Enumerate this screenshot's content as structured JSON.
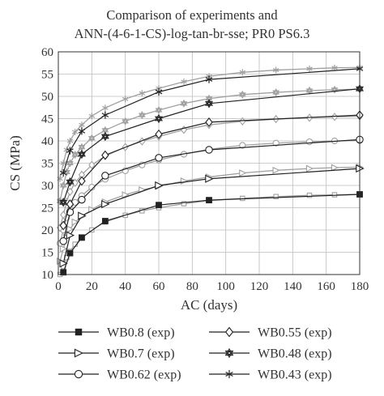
{
  "chart_data": {
    "type": "line",
    "title": [
      "Comparison of experiments and",
      "ANN-(4-6-1-CS)-log-tan-br-sse; PR0 PS6.3"
    ],
    "xlabel": "AC (days)",
    "ylabel": "CS (MPa)",
    "xlim": [
      0,
      180
    ],
    "ylim": [
      10,
      60
    ],
    "xticks": [
      0,
      20,
      40,
      60,
      80,
      100,
      120,
      140,
      160,
      180
    ],
    "yticks": [
      10,
      15,
      20,
      25,
      30,
      35,
      40,
      45,
      50,
      55,
      60
    ],
    "grid": true,
    "legend_position": "bottom",
    "experiment_days": [
      3,
      7,
      14,
      28,
      60,
      90,
      180
    ],
    "series": [
      {
        "name": "WB0.8 (exp)",
        "marker": "square-filled",
        "exp": [
          10.5,
          14.8,
          18.3,
          22.0,
          25.6,
          26.7,
          28.0
        ],
        "ann_color": "#9e9e9e",
        "ann_marker": "square-open",
        "ann": [
          [
            1,
            10.0
          ],
          [
            3,
            11.8
          ],
          [
            5,
            13.8
          ],
          [
            7,
            15.2
          ],
          [
            10,
            16.8
          ],
          [
            14,
            18.2
          ],
          [
            20,
            20.0
          ],
          [
            28,
            21.8
          ],
          [
            40,
            23.3
          ],
          [
            50,
            24.3
          ],
          [
            60,
            25.0
          ],
          [
            75,
            25.9
          ],
          [
            90,
            26.6
          ],
          [
            110,
            27.1
          ],
          [
            130,
            27.5
          ],
          [
            150,
            27.8
          ],
          [
            165,
            27.9
          ],
          [
            180,
            28.0
          ]
        ]
      },
      {
        "name": "WB0.7 (exp)",
        "marker": "triangle-right",
        "exp": [
          12.5,
          18.8,
          23.2,
          25.8,
          30.0,
          31.5,
          33.8
        ],
        "ann_color": "#9e9e9e",
        "ann_marker": "triangle-right",
        "ann": [
          [
            1,
            13.0
          ],
          [
            3,
            15.8
          ],
          [
            5,
            18.4
          ],
          [
            7,
            20.2
          ],
          [
            10,
            21.8
          ],
          [
            14,
            23.0
          ],
          [
            20,
            24.6
          ],
          [
            28,
            26.3
          ],
          [
            40,
            27.9
          ],
          [
            50,
            29.0
          ],
          [
            60,
            29.8
          ],
          [
            75,
            31.0
          ],
          [
            90,
            31.9
          ],
          [
            110,
            32.8
          ],
          [
            130,
            33.4
          ],
          [
            150,
            33.8
          ],
          [
            165,
            34.0
          ],
          [
            180,
            34.1
          ]
        ]
      },
      {
        "name": "WB0.62 (exp)",
        "marker": "circle-open",
        "exp": [
          17.5,
          24.0,
          26.8,
          32.2,
          36.2,
          38.0,
          40.3
        ],
        "ann_color": "#9e9e9e",
        "ann_marker": "circle-open",
        "ann": [
          [
            1,
            17.0
          ],
          [
            3,
            20.0
          ],
          [
            5,
            22.8
          ],
          [
            7,
            24.6
          ],
          [
            10,
            26.2
          ],
          [
            14,
            27.7
          ],
          [
            20,
            29.6
          ],
          [
            28,
            31.4
          ],
          [
            40,
            33.3
          ],
          [
            50,
            34.6
          ],
          [
            60,
            35.7
          ],
          [
            75,
            37.0
          ],
          [
            90,
            38.1
          ],
          [
            110,
            39.0
          ],
          [
            130,
            39.5
          ],
          [
            150,
            39.8
          ],
          [
            165,
            40.0
          ],
          [
            180,
            40.1
          ]
        ]
      },
      {
        "name": "WB0.55 (exp)",
        "marker": "diamond-open",
        "exp": [
          21.0,
          25.8,
          31.0,
          36.8,
          41.5,
          44.2,
          45.8
        ],
        "ann_color": "#9e9e9e",
        "ann_marker": "diamond-open",
        "ann": [
          [
            1,
            20.5
          ],
          [
            3,
            23.4
          ],
          [
            5,
            26.3
          ],
          [
            7,
            28.6
          ],
          [
            10,
            30.6
          ],
          [
            14,
            32.4
          ],
          [
            20,
            34.6
          ],
          [
            28,
            36.6
          ],
          [
            40,
            38.6
          ],
          [
            50,
            39.9
          ],
          [
            60,
            41.0
          ],
          [
            75,
            42.5
          ],
          [
            90,
            43.6
          ],
          [
            110,
            44.4
          ],
          [
            130,
            44.9
          ],
          [
            150,
            45.2
          ],
          [
            165,
            45.4
          ],
          [
            180,
            45.5
          ]
        ]
      },
      {
        "name": "WB0.48 (exp)",
        "marker": "star-open",
        "exp": [
          26.2,
          30.8,
          37.0,
          41.0,
          45.0,
          48.4,
          51.7
        ],
        "ann_color": "#9e9e9e",
        "ann_marker": "star-open",
        "ann": [
          [
            1,
            26.5
          ],
          [
            3,
            30.0
          ],
          [
            5,
            33.0
          ],
          [
            7,
            35.0
          ],
          [
            10,
            36.9
          ],
          [
            14,
            38.6
          ],
          [
            20,
            40.6
          ],
          [
            28,
            42.4
          ],
          [
            40,
            44.4
          ],
          [
            50,
            45.8
          ],
          [
            60,
            46.9
          ],
          [
            75,
            48.4
          ],
          [
            90,
            49.5
          ],
          [
            110,
            50.4
          ],
          [
            130,
            50.9
          ],
          [
            150,
            51.3
          ],
          [
            165,
            51.5
          ],
          [
            180,
            51.6
          ]
        ]
      },
      {
        "name": "WB0.43 (exp)",
        "marker": "asterisk",
        "exp": [
          32.8,
          37.8,
          42.2,
          45.8,
          51.0,
          53.8,
          56.2
        ],
        "ann_color": "#9e9e9e",
        "ann_marker": "asterisk",
        "ann": [
          [
            1,
            31.5
          ],
          [
            3,
            35.0
          ],
          [
            5,
            38.0
          ],
          [
            7,
            40.0
          ],
          [
            10,
            42.0
          ],
          [
            14,
            43.6
          ],
          [
            20,
            45.6
          ],
          [
            28,
            47.4
          ],
          [
            40,
            49.4
          ],
          [
            50,
            50.7
          ],
          [
            60,
            51.8
          ],
          [
            75,
            53.3
          ],
          [
            90,
            54.5
          ],
          [
            110,
            55.4
          ],
          [
            130,
            55.9
          ],
          [
            150,
            56.2
          ],
          [
            165,
            56.4
          ],
          [
            180,
            56.5
          ]
        ]
      }
    ],
    "colors": {
      "exp": "#222222",
      "ann": "#a0a0a0",
      "grid": "#bdbdbd"
    }
  }
}
